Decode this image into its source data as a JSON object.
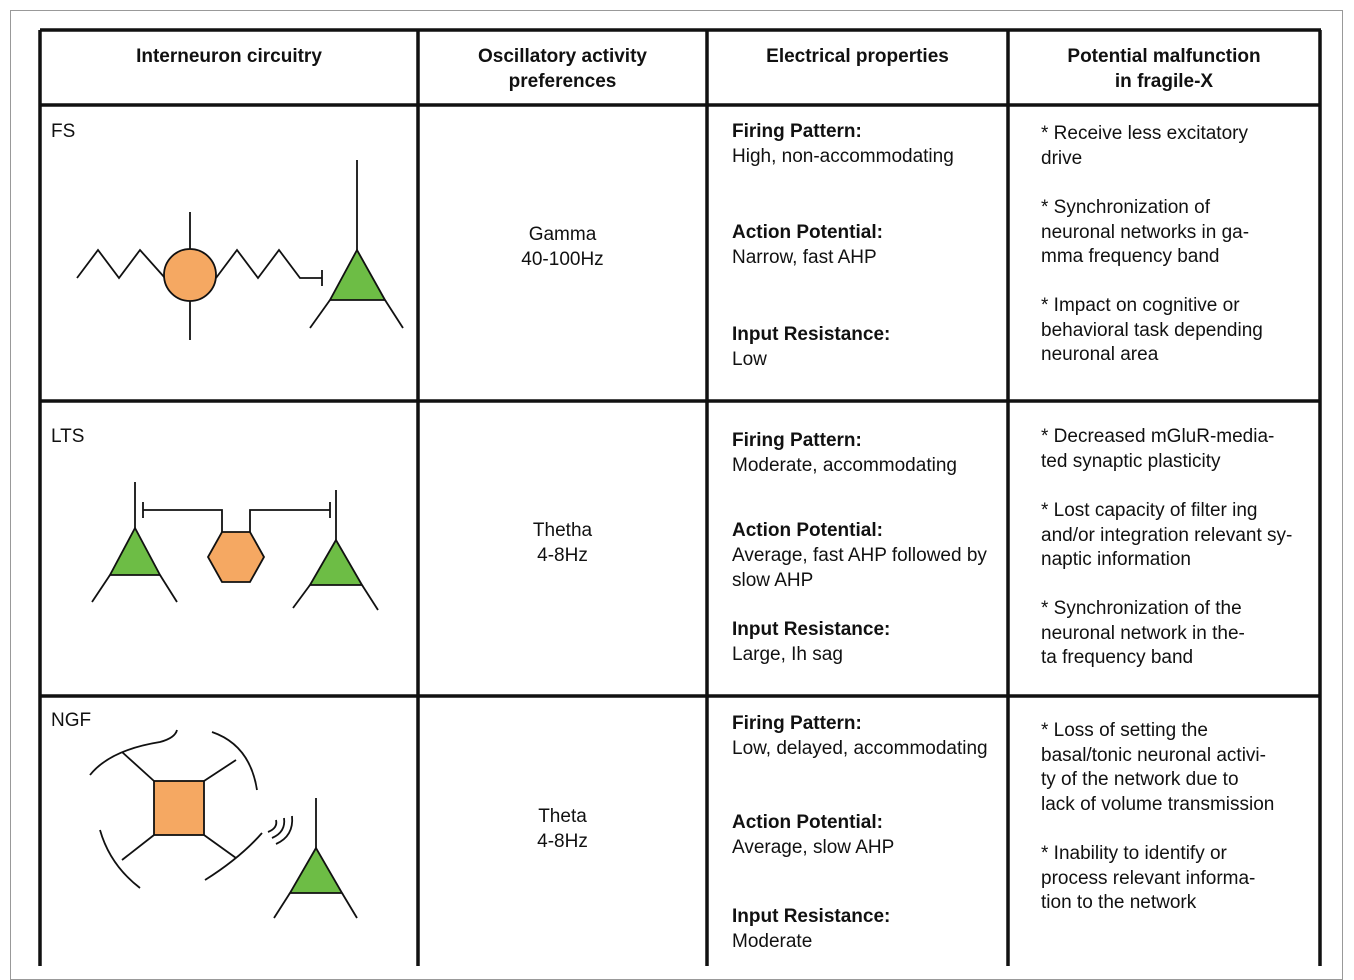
{
  "table": {
    "header": [
      "Interneuron circuitry",
      "Oscillatory activity\npreferences",
      "Electrical properties",
      "Potential malfunction\nin fragile-X"
    ],
    "rows": [
      {
        "label": "FS",
        "oscillation": "Gamma\n40-100Hz",
        "properties": [
          {
            "name": "Firing Pattern:",
            "value": "High, non-accommodating"
          },
          {
            "name": "Action Potential:",
            "value": "Narrow, fast AHP"
          },
          {
            "name": "Input Resistance:",
            "value": "Low"
          }
        ],
        "malfunction": [
          "* Receive less excitatory\ndrive",
          "* Synchronization of\nneuronal networks in ga-\nmma frequency band",
          "* Impact on cognitive or\nbehavioral task depending\nneuronal area"
        ]
      },
      {
        "label": "LTS",
        "oscillation": "Thetha\n4-8Hz",
        "properties": [
          {
            "name": "Firing Pattern:",
            "value": "Moderate, accommodating"
          },
          {
            "name": "Action Potential:",
            "value": "Average, fast AHP followed by\nslow AHP"
          },
          {
            "name": "Input Resistance:",
            "value": "Large, Ih sag"
          }
        ],
        "malfunction": [
          "* Decreased mGluR-media-\nted synaptic plasticity",
          "* Lost capacity of filter ing\nand/or integration relevant sy-\nnaptic information",
          "* Synchronization of the\nneuronal network in the-\nta frequency band"
        ]
      },
      {
        "label": "NGF",
        "oscillation": "Theta\n4-8Hz",
        "properties": [
          {
            "name": "Firing Pattern:",
            "value": "Low, delayed, accommodating"
          },
          {
            "name": "Action Potential:",
            "value": "Average, slow AHP"
          },
          {
            "name": "Input Resistance:",
            "value": "Moderate"
          }
        ],
        "malfunction": [
          "* Loss of setting the\nbasal/tonic neuronal activi-\nty of the network due to\nlack of volume transmission",
          "* Inability to identify or\nprocess relevant informa-\ntion to the network"
        ]
      }
    ]
  }
}
